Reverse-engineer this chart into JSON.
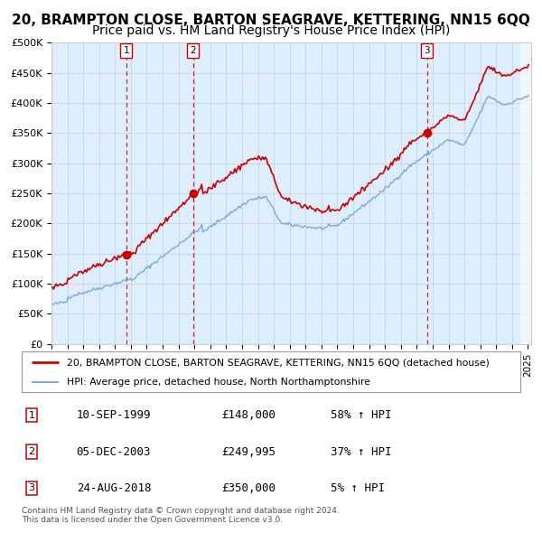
{
  "title": "20, BRAMPTON CLOSE, BARTON SEAGRAVE, KETTERING, NN15 6QQ",
  "subtitle": "Price paid vs. HM Land Registry's House Price Index (HPI)",
  "ylim": [
    0,
    500000
  ],
  "yticks": [
    0,
    50000,
    100000,
    150000,
    200000,
    250000,
    300000,
    350000,
    400000,
    450000,
    500000
  ],
  "ytick_labels": [
    "£0",
    "£50K",
    "£100K",
    "£150K",
    "£200K",
    "£250K",
    "£300K",
    "£350K",
    "£400K",
    "£450K",
    "£500K"
  ],
  "sale_dates_num": [
    1999.706,
    2003.921,
    2018.644
  ],
  "sale_prices": [
    148000,
    249995,
    350000
  ],
  "sale_labels": [
    "1",
    "2",
    "3"
  ],
  "legend_property": "20, BRAMPTON CLOSE, BARTON SEAGRAVE, KETTERING, NN15 6QQ (detached house)",
  "legend_hpi": "HPI: Average price, detached house, North Northamptonshire",
  "table_rows": [
    {
      "num": "1",
      "date": "10-SEP-1999",
      "price": "£148,000",
      "hpi": "58% ↑ HPI"
    },
    {
      "num": "2",
      "date": "05-DEC-2003",
      "price": "£249,995",
      "hpi": "37% ↑ HPI"
    },
    {
      "num": "3",
      "date": "24-AUG-2018",
      "price": "£350,000",
      "hpi": "5% ↑ HPI"
    }
  ],
  "footnote1": "Contains HM Land Registry data © Crown copyright and database right 2024.",
  "footnote2": "This data is licensed under the Open Government Licence v3.0.",
  "property_color": "#cc0000",
  "hpi_color": "#7aaadd",
  "vline_color": "#cc0000",
  "shade_color": "#ddeeff",
  "hatch_color": "#cccccc",
  "background_color": "#ffffff",
  "grid_color": "#cccccc",
  "title_fontsize": 11,
  "subtitle_fontsize": 10
}
